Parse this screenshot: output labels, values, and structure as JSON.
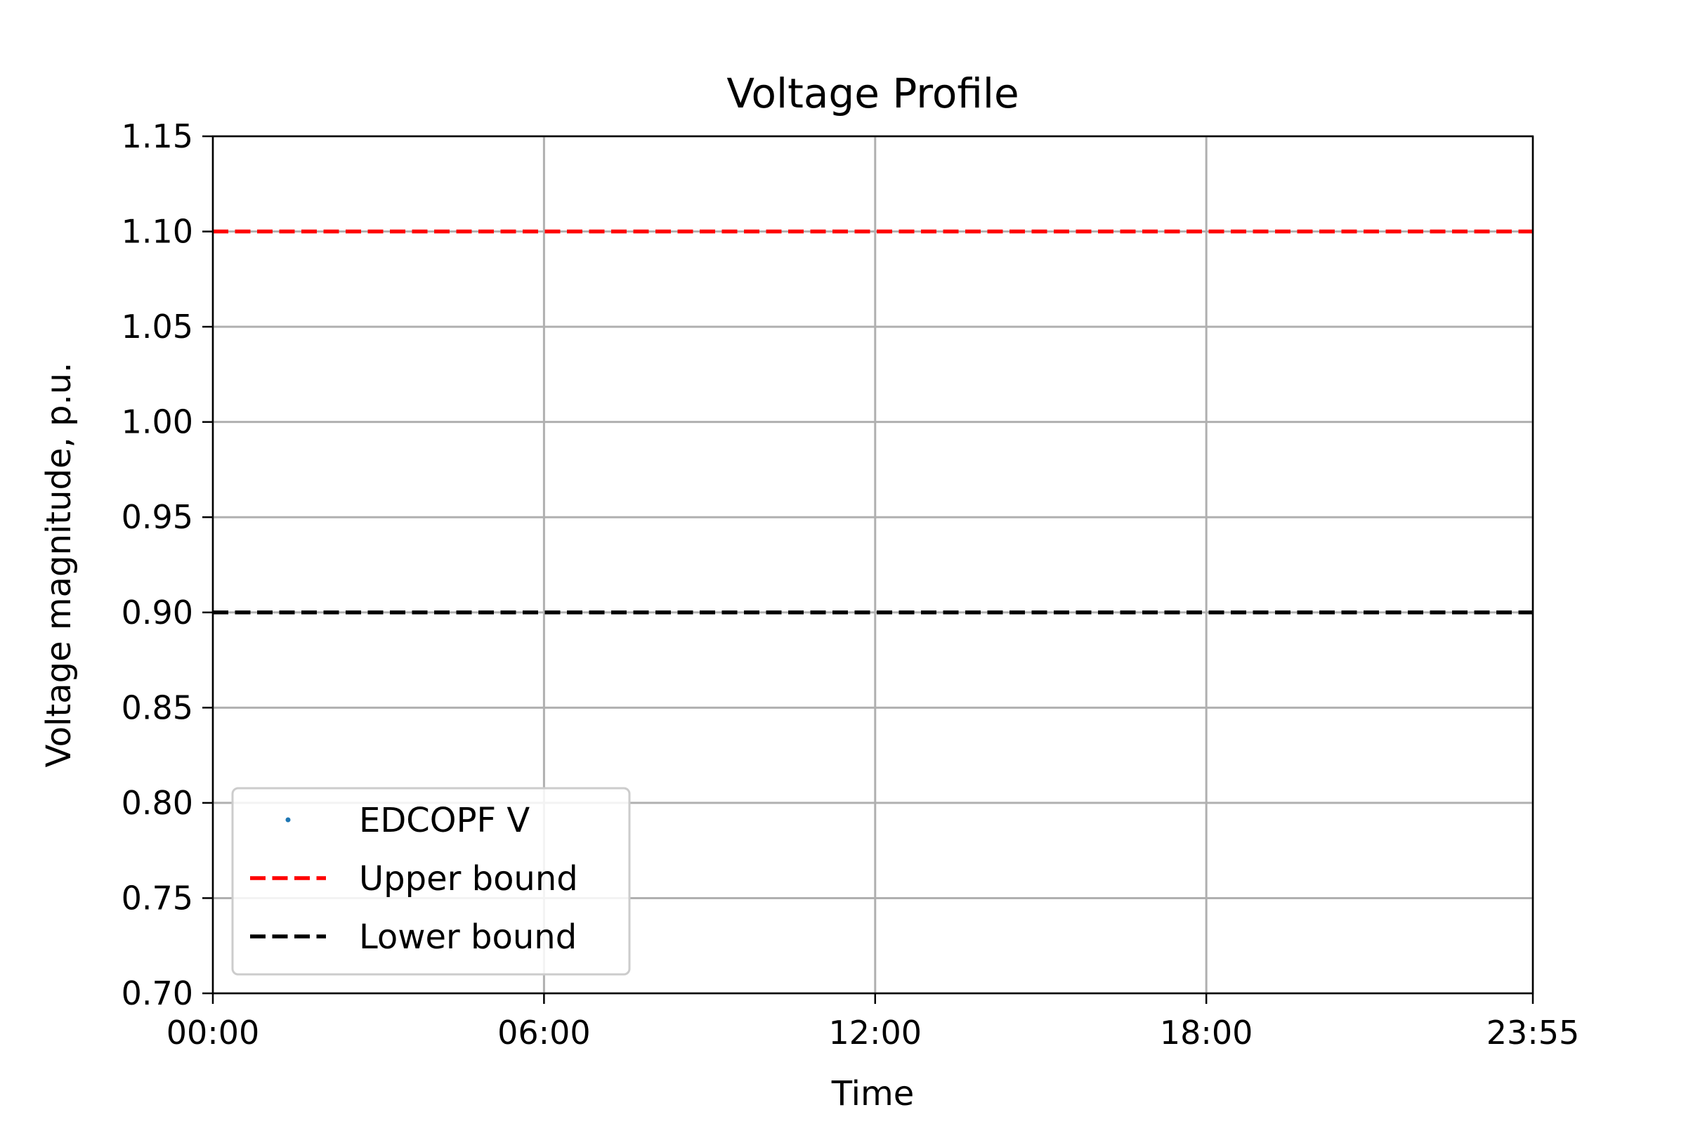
{
  "chart_data": {
    "type": "line",
    "title": "Voltage Profile",
    "xlabel": "Time",
    "ylabel": "Voltage magnitude, p.u.",
    "x_ticks": [
      "00:00",
      "06:00",
      "12:00",
      "18:00",
      "23:55"
    ],
    "x_tick_minutes": [
      0,
      360,
      720,
      1080,
      1435
    ],
    "xlim": [
      "00:00",
      "23:55"
    ],
    "y_ticks": [
      "0.70",
      "0.75",
      "0.80",
      "0.85",
      "0.90",
      "0.95",
      "1.00",
      "1.05",
      "1.10",
      "1.15"
    ],
    "ylim": [
      0.7,
      1.15
    ],
    "grid": true,
    "legend_position": "lower-left",
    "series": [
      {
        "name": "EDCOPF V",
        "style": "points",
        "color": "#1f77b4",
        "x": [],
        "y": []
      },
      {
        "name": "Upper bound",
        "style": "dashed",
        "color": "#ff0000",
        "x": [
          "00:00",
          "23:55"
        ],
        "y": [
          1.1,
          1.1
        ]
      },
      {
        "name": "Lower bound",
        "style": "dashed",
        "color": "#000000",
        "x": [
          "00:00",
          "23:55"
        ],
        "y": [
          0.9,
          0.9
        ]
      }
    ]
  }
}
